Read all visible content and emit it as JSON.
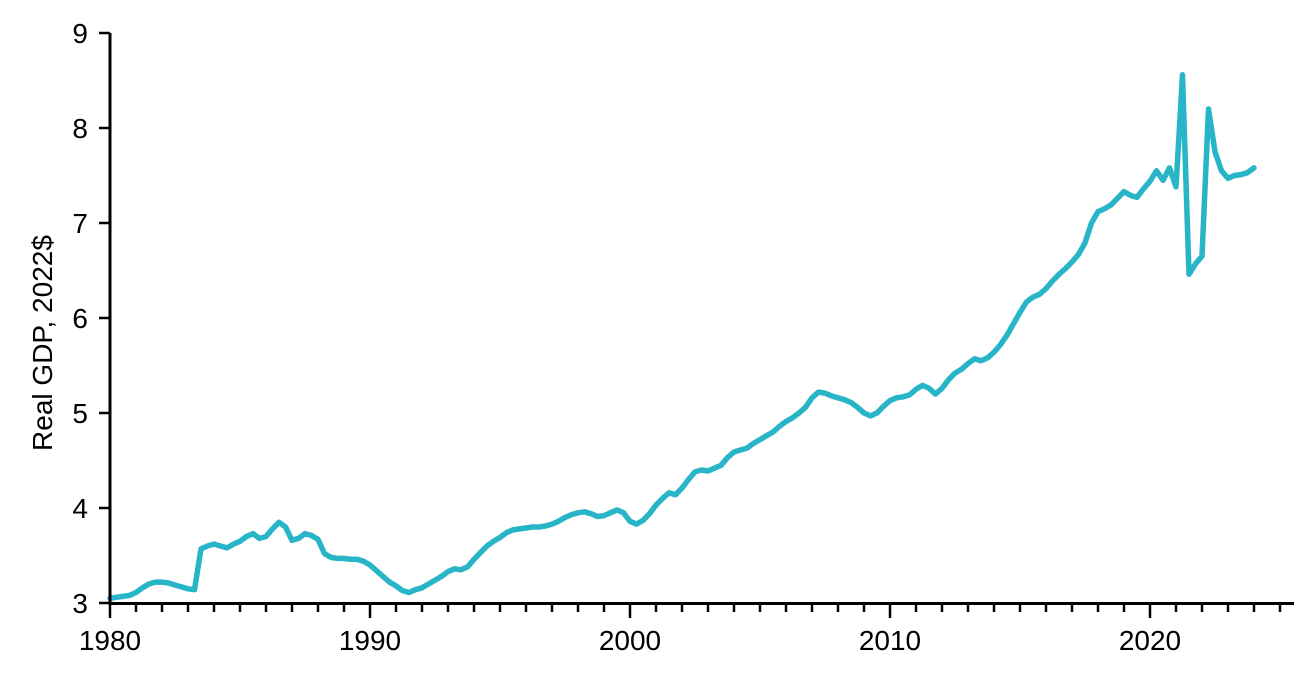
{
  "chart_data": {
    "type": "line",
    "title": "",
    "xlabel": "",
    "ylabel": "Real GDP, 2022$",
    "xlim": [
      1980,
      2025.6
    ],
    "ylim": [
      3,
      9
    ],
    "grid": false,
    "legend": false,
    "line_color": "#29b5c8",
    "axis_color": "#000000",
    "background_color": "#ffffff",
    "y_tick_labels": [
      3,
      4,
      5,
      6,
      7,
      8,
      9
    ],
    "x_tick_labels": [
      1980,
      1990,
      2000,
      2010,
      2020
    ],
    "x_minor_ticks_every": 1,
    "x_minor_tick_range": [
      1980,
      2025
    ],
    "series": [
      {
        "name": "Real GDP, 2022$",
        "points": [
          [
            1980,
            3.05
          ],
          [
            1980.25,
            3.06
          ],
          [
            1980.5,
            3.07
          ],
          [
            1980.75,
            3.08
          ],
          [
            1981,
            3.11
          ],
          [
            1981.25,
            3.16
          ],
          [
            1981.5,
            3.2
          ],
          [
            1981.75,
            3.22
          ],
          [
            1982,
            3.22
          ],
          [
            1982.25,
            3.21
          ],
          [
            1982.5,
            3.19
          ],
          [
            1982.75,
            3.17
          ],
          [
            1983,
            3.15
          ],
          [
            1983.25,
            3.14
          ],
          [
            1983.5,
            3.57
          ],
          [
            1983.75,
            3.6
          ],
          [
            1984,
            3.62
          ],
          [
            1984.25,
            3.6
          ],
          [
            1984.5,
            3.58
          ],
          [
            1984.75,
            3.62
          ],
          [
            1985,
            3.65
          ],
          [
            1985.25,
            3.7
          ],
          [
            1985.5,
            3.73
          ],
          [
            1985.75,
            3.68
          ],
          [
            1986,
            3.7
          ],
          [
            1986.25,
            3.78
          ],
          [
            1986.5,
            3.85
          ],
          [
            1986.75,
            3.8
          ],
          [
            1987,
            3.66
          ],
          [
            1987.25,
            3.68
          ],
          [
            1987.5,
            3.73
          ],
          [
            1987.75,
            3.71
          ],
          [
            1988,
            3.67
          ],
          [
            1988.25,
            3.52
          ],
          [
            1988.5,
            3.48
          ],
          [
            1988.75,
            3.47
          ],
          [
            1989,
            3.47
          ],
          [
            1989.25,
            3.46
          ],
          [
            1989.5,
            3.46
          ],
          [
            1989.75,
            3.44
          ],
          [
            1990,
            3.4
          ],
          [
            1990.25,
            3.34
          ],
          [
            1990.5,
            3.28
          ],
          [
            1990.75,
            3.22
          ],
          [
            1991,
            3.18
          ],
          [
            1991.25,
            3.13
          ],
          [
            1991.5,
            3.11
          ],
          [
            1991.75,
            3.14
          ],
          [
            1992,
            3.16
          ],
          [
            1992.25,
            3.2
          ],
          [
            1992.5,
            3.24
          ],
          [
            1992.75,
            3.28
          ],
          [
            1993,
            3.33
          ],
          [
            1993.25,
            3.36
          ],
          [
            1993.5,
            3.35
          ],
          [
            1993.75,
            3.38
          ],
          [
            1994,
            3.46
          ],
          [
            1994.25,
            3.53
          ],
          [
            1994.5,
            3.6
          ],
          [
            1994.75,
            3.65
          ],
          [
            1995,
            3.69
          ],
          [
            1995.25,
            3.74
          ],
          [
            1995.5,
            3.77
          ],
          [
            1995.75,
            3.78
          ],
          [
            1996,
            3.79
          ],
          [
            1996.25,
            3.8
          ],
          [
            1996.5,
            3.8
          ],
          [
            1996.75,
            3.81
          ],
          [
            1997,
            3.83
          ],
          [
            1997.25,
            3.86
          ],
          [
            1997.5,
            3.9
          ],
          [
            1997.75,
            3.93
          ],
          [
            1998,
            3.95
          ],
          [
            1998.25,
            3.96
          ],
          [
            1998.5,
            3.94
          ],
          [
            1998.75,
            3.91
          ],
          [
            1999,
            3.92
          ],
          [
            1999.25,
            3.95
          ],
          [
            1999.5,
            3.98
          ],
          [
            1999.75,
            3.95
          ],
          [
            2000,
            3.86
          ],
          [
            2000.25,
            3.83
          ],
          [
            2000.5,
            3.87
          ],
          [
            2000.75,
            3.94
          ],
          [
            2001,
            4.03
          ],
          [
            2001.25,
            4.1
          ],
          [
            2001.5,
            4.16
          ],
          [
            2001.75,
            4.14
          ],
          [
            2002,
            4.21
          ],
          [
            2002.25,
            4.3
          ],
          [
            2002.5,
            4.38
          ],
          [
            2002.75,
            4.4
          ],
          [
            2003,
            4.39
          ],
          [
            2003.25,
            4.42
          ],
          [
            2003.5,
            4.45
          ],
          [
            2003.75,
            4.53
          ],
          [
            2004,
            4.59
          ],
          [
            2004.25,
            4.61
          ],
          [
            2004.5,
            4.63
          ],
          [
            2004.75,
            4.68
          ],
          [
            2005,
            4.72
          ],
          [
            2005.25,
            4.76
          ],
          [
            2005.5,
            4.8
          ],
          [
            2005.75,
            4.86
          ],
          [
            2006,
            4.91
          ],
          [
            2006.25,
            4.95
          ],
          [
            2006.5,
            5.0
          ],
          [
            2006.75,
            5.06
          ],
          [
            2007,
            5.16
          ],
          [
            2007.25,
            5.22
          ],
          [
            2007.5,
            5.21
          ],
          [
            2007.75,
            5.18
          ],
          [
            2008,
            5.16
          ],
          [
            2008.25,
            5.14
          ],
          [
            2008.5,
            5.11
          ],
          [
            2008.75,
            5.06
          ],
          [
            2009,
            5.0
          ],
          [
            2009.25,
            4.97
          ],
          [
            2009.5,
            5.0
          ],
          [
            2009.75,
            5.07
          ],
          [
            2010,
            5.13
          ],
          [
            2010.25,
            5.16
          ],
          [
            2010.5,
            5.17
          ],
          [
            2010.75,
            5.19
          ],
          [
            2011,
            5.25
          ],
          [
            2011.25,
            5.29
          ],
          [
            2011.5,
            5.26
          ],
          [
            2011.75,
            5.2
          ],
          [
            2012,
            5.26
          ],
          [
            2012.25,
            5.35
          ],
          [
            2012.5,
            5.42
          ],
          [
            2012.75,
            5.46
          ],
          [
            2013,
            5.52
          ],
          [
            2013.25,
            5.57
          ],
          [
            2013.5,
            5.55
          ],
          [
            2013.75,
            5.58
          ],
          [
            2014,
            5.64
          ],
          [
            2014.25,
            5.72
          ],
          [
            2014.5,
            5.82
          ],
          [
            2014.75,
            5.94
          ],
          [
            2015,
            6.06
          ],
          [
            2015.25,
            6.17
          ],
          [
            2015.5,
            6.22
          ],
          [
            2015.75,
            6.25
          ],
          [
            2016,
            6.31
          ],
          [
            2016.25,
            6.39
          ],
          [
            2016.5,
            6.46
          ],
          [
            2016.75,
            6.52
          ],
          [
            2017,
            6.59
          ],
          [
            2017.25,
            6.67
          ],
          [
            2017.5,
            6.79
          ],
          [
            2017.75,
            7.0
          ],
          [
            2018,
            7.12
          ],
          [
            2018.25,
            7.15
          ],
          [
            2018.5,
            7.19
          ],
          [
            2018.75,
            7.26
          ],
          [
            2019,
            7.33
          ],
          [
            2019.25,
            7.29
          ],
          [
            2019.5,
            7.27
          ],
          [
            2019.75,
            7.36
          ],
          [
            2020,
            7.44
          ],
          [
            2020.25,
            7.55
          ],
          [
            2020.5,
            7.45
          ],
          [
            2020.75,
            7.58
          ],
          [
            2021,
            7.38
          ],
          [
            2021.25,
            8.56
          ],
          [
            2021.5,
            6.46
          ],
          [
            2021.75,
            6.57
          ],
          [
            2022,
            6.65
          ],
          [
            2022.25,
            8.2
          ],
          [
            2022.5,
            7.75
          ],
          [
            2022.75,
            7.55
          ],
          [
            2023,
            7.47
          ],
          [
            2023.25,
            7.5
          ],
          [
            2023.5,
            7.51
          ],
          [
            2023.75,
            7.53
          ],
          [
            2024,
            7.58
          ]
        ]
      }
    ]
  }
}
